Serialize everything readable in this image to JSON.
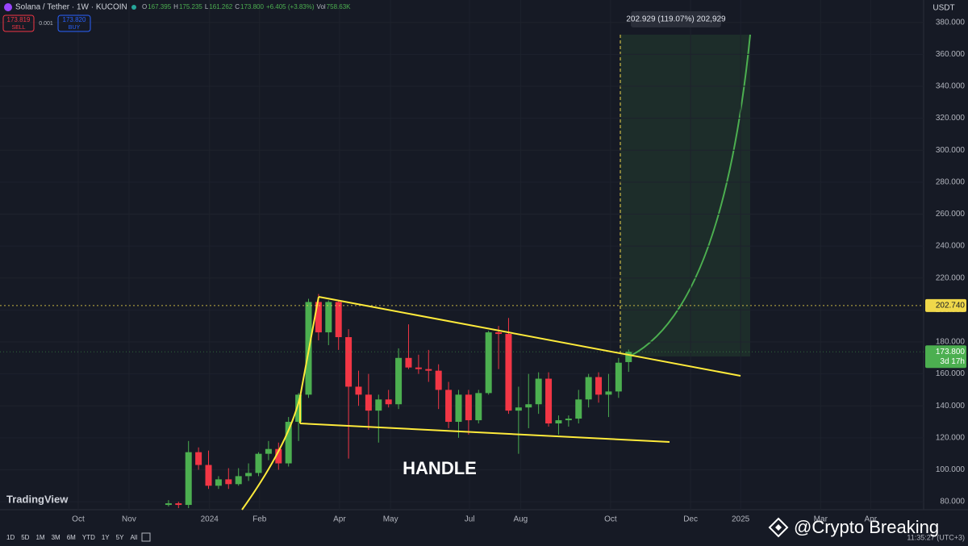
{
  "toolbar": {
    "symbol": "Solana / Tether · 1W · KUCOIN",
    "legend": [
      {
        "key": "O",
        "value": "167.395"
      },
      {
        "key": "H",
        "value": "175.235"
      },
      {
        "key": "L",
        "value": "161.262"
      },
      {
        "key": "C",
        "value": "173.800"
      }
    ],
    "change": "+6.405 (+3.83%)",
    "volume": {
      "key": "Vol",
      "value": "758.63K"
    }
  },
  "trade": {
    "sell_price": "173.819",
    "sell": "SELL",
    "spread": "0.001",
    "buy_price": "173.820",
    "buy": "BUY"
  },
  "currency": "USDT",
  "chart_data": {
    "type": "candlestick",
    "up_color": "#4caf50",
    "down_color": "#f23645",
    "open": [
      78,
      79,
      78,
      111,
      103,
      90,
      94,
      91,
      96,
      98,
      110,
      113,
      104,
      130,
      147,
      205,
      186,
      205,
      183,
      152,
      147,
      137,
      144,
      141,
      170,
      164,
      163,
      162,
      150,
      130,
      147,
      131,
      148,
      186,
      185,
      137,
      139,
      141,
      157,
      129,
      131,
      132,
      144,
      158,
      147,
      149,
      167.395
    ],
    "high": [
      81,
      80,
      118,
      114,
      112,
      96,
      101,
      101,
      104,
      111,
      118,
      117,
      133,
      148,
      207,
      210,
      206,
      206,
      188,
      162,
      160,
      147,
      150,
      176,
      191,
      172,
      175,
      166,
      155,
      150,
      150,
      150,
      187,
      190,
      195,
      152,
      160,
      161,
      161,
      134,
      134,
      150,
      160,
      161,
      160,
      170,
      175.235
    ],
    "low": [
      77,
      76,
      76,
      100,
      88,
      88,
      88,
      90,
      93,
      96,
      106,
      100,
      102,
      118,
      145,
      181,
      178,
      175,
      107,
      140,
      125,
      117,
      139,
      138,
      163,
      160,
      155,
      138,
      126,
      120,
      122,
      129,
      147,
      163,
      135,
      110,
      126,
      135,
      127,
      122,
      127,
      129,
      139,
      142,
      133,
      145,
      161.262
    ],
    "close": [
      79,
      78,
      111,
      103,
      90,
      94,
      91,
      96,
      98,
      110,
      113,
      104,
      130,
      147,
      205,
      186,
      205,
      183,
      152,
      147,
      137,
      144,
      141,
      170,
      164,
      163,
      162,
      150,
      130,
      147,
      131,
      148,
      186,
      185,
      137,
      139,
      141,
      157,
      129,
      131,
      132,
      144,
      158,
      147,
      149,
      167,
      173.8
    ],
    "xlim": [
      -16.85,
      75.5
    ],
    "ylim": [
      75,
      394
    ],
    "yticks": [
      {
        "value": 80,
        "label": "80.000"
      },
      {
        "value": 100,
        "label": "100.000"
      },
      {
        "value": 120,
        "label": "120.000"
      },
      {
        "value": 140,
        "label": "140.000"
      },
      {
        "value": 160,
        "label": "160.000"
      },
      {
        "value": 180,
        "label": "180.000"
      },
      {
        "value": 200,
        "label": "200.000"
      },
      {
        "value": 220,
        "label": "220.000"
      },
      {
        "value": 240,
        "label": "240.000"
      },
      {
        "value": 260,
        "label": "260.000"
      },
      {
        "value": 280,
        "label": "280.000"
      },
      {
        "value": 300,
        "label": "300.000"
      },
      {
        "value": 320,
        "label": "320.000"
      },
      {
        "value": 340,
        "label": "340.000"
      },
      {
        "value": 360,
        "label": "360.000"
      },
      {
        "value": 380,
        "label": "380.000"
      }
    ],
    "xticks": [
      {
        "value": -9.03,
        "label": "Oct"
      },
      {
        "value": -3.95,
        "label": "Nov"
      },
      {
        "value": 4.1,
        "label": "2024"
      },
      {
        "value": 9.1,
        "label": "Feb"
      },
      {
        "value": 17.1,
        "label": "Apr"
      },
      {
        "value": 22.2,
        "label": "May"
      },
      {
        "value": 30.1,
        "label": "Jul"
      },
      {
        "value": 35.2,
        "label": "Aug"
      },
      {
        "value": 44.2,
        "label": "Oct"
      },
      {
        "value": 52.2,
        "label": "Dec"
      },
      {
        "value": 57.2,
        "label": "2025"
      },
      {
        "value": 65.2,
        "label": "Mar"
      },
      {
        "value": 70.2,
        "label": "Apr"
      }
    ],
    "price_lines": [
      {
        "value": 202.74,
        "label": "202.740",
        "color": "#f0d84a"
      },
      {
        "value": 173.8,
        "label": "173.800",
        "sublabel": "3d 17h",
        "color": "#4caf50"
      }
    ],
    "annotations": {
      "pattern": "HANDLE",
      "measure": "202.929 (119.07%) 202,929"
    }
  },
  "footer": {
    "logo": "TradingView",
    "periods": [
      "1D",
      "5D",
      "1M",
      "3M",
      "6M",
      "YTD",
      "1Y",
      "5Y",
      "All"
    ],
    "time": "11:35:27 (UTC+3)",
    "watermark": "@Crypto Breaking"
  }
}
